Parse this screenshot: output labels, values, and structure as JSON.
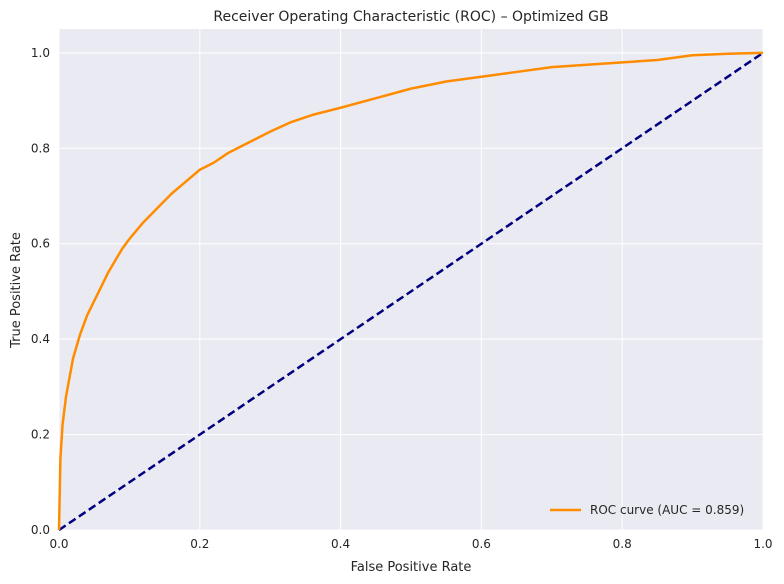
{
  "chart_data": {
    "type": "line",
    "title": "Receiver Operating Characteristic (ROC) – Optimized GB",
    "xlabel": "False Positive Rate",
    "ylabel": "True Positive Rate",
    "xlim": [
      0.0,
      1.0
    ],
    "ylim": [
      0.0,
      1.05
    ],
    "xticks": [
      "0.0",
      "0.2",
      "0.4",
      "0.6",
      "0.8",
      "1.0"
    ],
    "yticks": [
      "0.0",
      "0.2",
      "0.4",
      "0.6",
      "0.8",
      "1.0"
    ],
    "grid": true,
    "legend_position": "bottom-right",
    "series": [
      {
        "name": "ROC curve (AUC = 0.859)",
        "color": "#ff8c00",
        "style": "solid",
        "x": [
          0.0,
          0.002,
          0.005,
          0.01,
          0.015,
          0.02,
          0.03,
          0.04,
          0.05,
          0.06,
          0.07,
          0.08,
          0.09,
          0.1,
          0.12,
          0.14,
          0.16,
          0.18,
          0.2,
          0.22,
          0.24,
          0.26,
          0.28,
          0.3,
          0.33,
          0.36,
          0.4,
          0.45,
          0.5,
          0.55,
          0.6,
          0.65,
          0.7,
          0.75,
          0.8,
          0.85,
          0.9,
          0.95,
          1.0
        ],
        "y": [
          0.0,
          0.15,
          0.22,
          0.28,
          0.32,
          0.36,
          0.41,
          0.45,
          0.48,
          0.51,
          0.54,
          0.565,
          0.59,
          0.61,
          0.645,
          0.675,
          0.705,
          0.73,
          0.755,
          0.77,
          0.79,
          0.805,
          0.82,
          0.835,
          0.855,
          0.87,
          0.885,
          0.905,
          0.925,
          0.94,
          0.95,
          0.96,
          0.97,
          0.975,
          0.98,
          0.985,
          0.995,
          0.998,
          1.0
        ]
      },
      {
        "name": "",
        "color": "#000080",
        "style": "dashed",
        "x": [
          0.0,
          1.0
        ],
        "y": [
          0.0,
          1.0
        ]
      }
    ]
  }
}
